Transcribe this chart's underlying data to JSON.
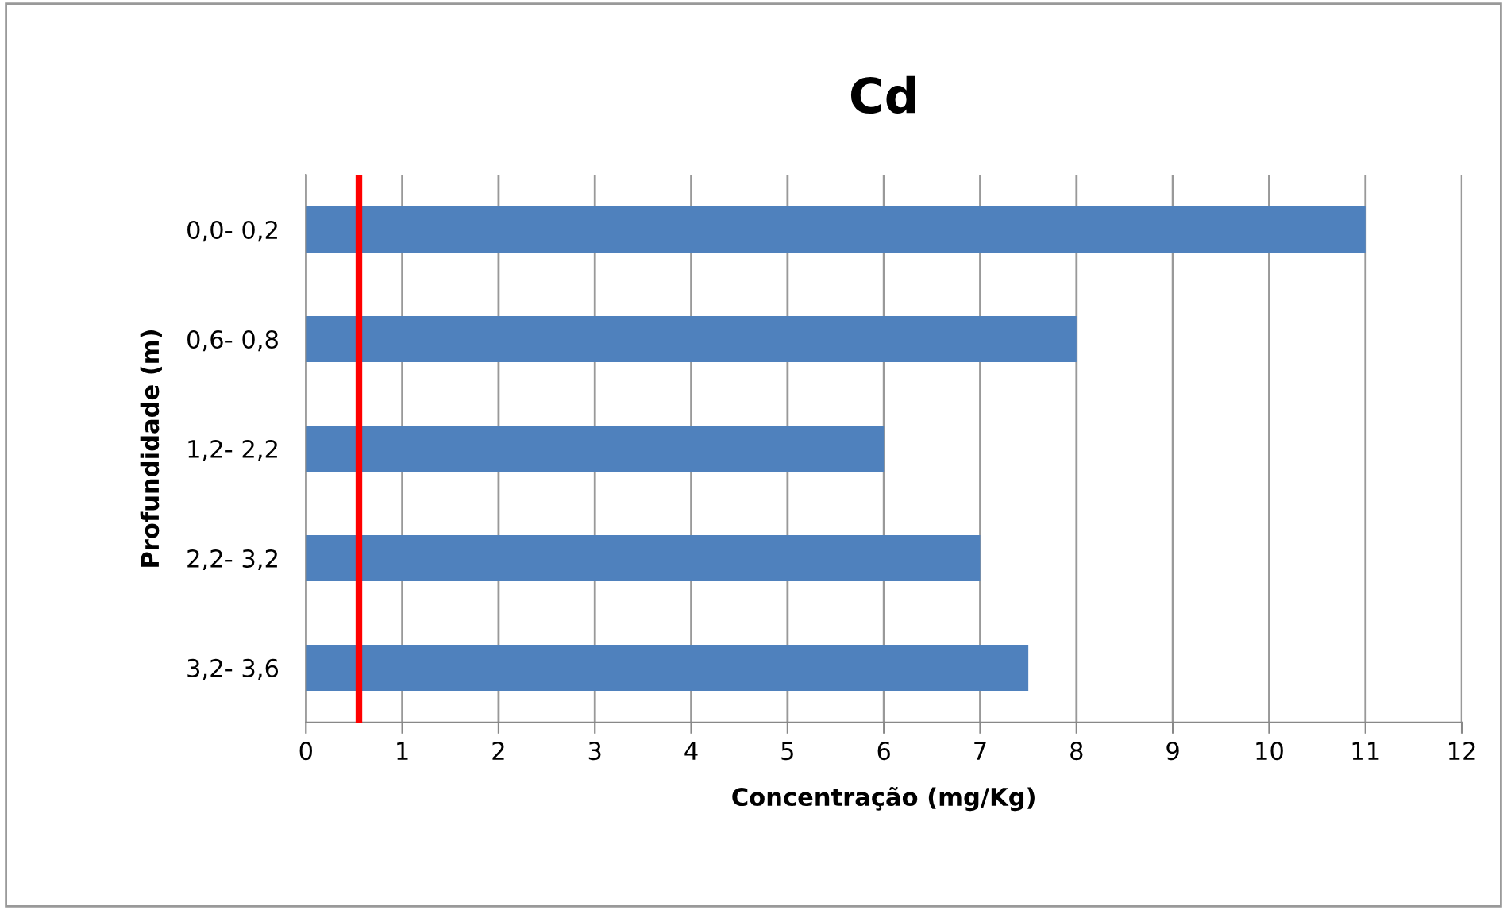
{
  "chart_data": {
    "type": "bar",
    "orientation": "horizontal",
    "title": "Cd",
    "xlabel": "Concentração (mg/Kg)",
    "ylabel": "Profundidade (m)",
    "categories": [
      "0,0- 0,2",
      "0,6- 0,8",
      "1,2- 2,2",
      "2,2- 3,2",
      "3,2- 3,6"
    ],
    "values": [
      11,
      8,
      6,
      7,
      7.5
    ],
    "color": "#4f81bd",
    "xlim": [
      0,
      12
    ],
    "xticks": [
      0,
      1,
      2,
      3,
      4,
      5,
      6,
      7,
      8,
      9,
      10,
      11,
      12
    ],
    "grid": "x",
    "ref_lines": [
      {
        "axis": "x",
        "value": 0.55,
        "color": "#ff0000"
      }
    ]
  }
}
